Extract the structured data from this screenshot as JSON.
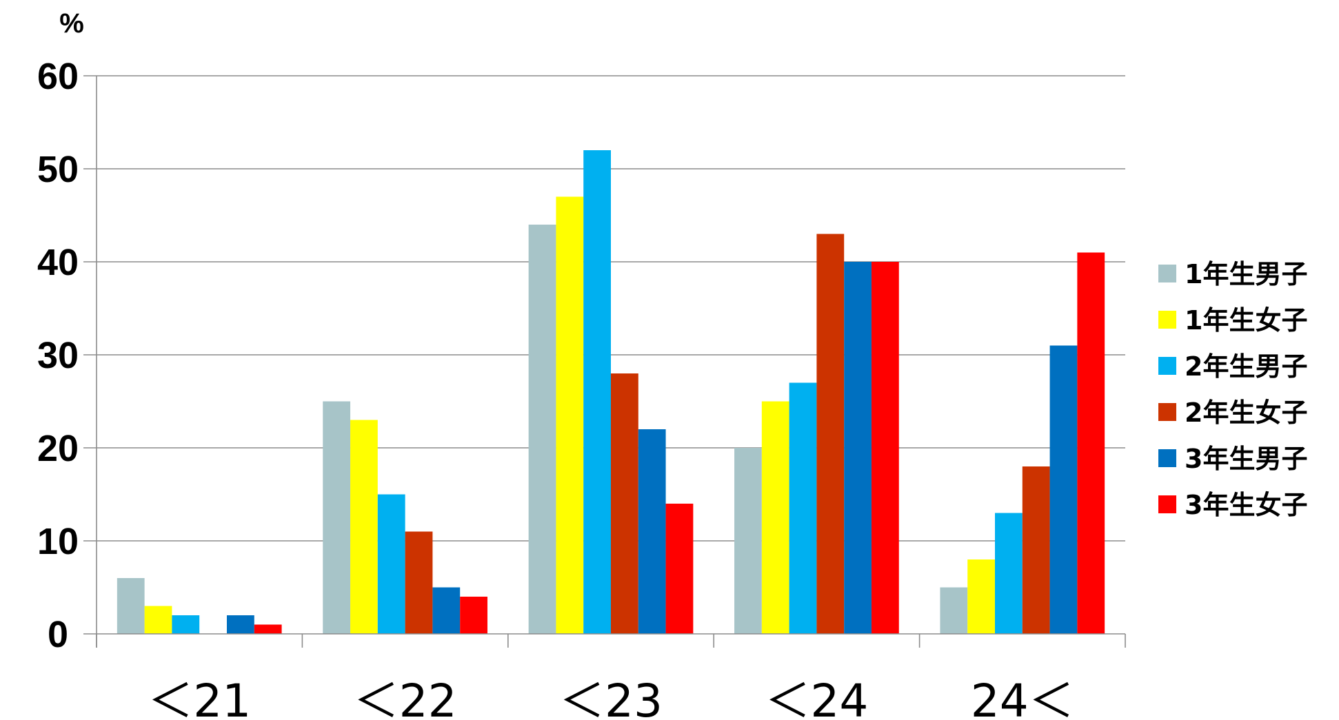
{
  "chart_data": {
    "type": "bar",
    "ylabel": "%",
    "ylim": [
      0,
      60
    ],
    "yticks": [
      "0",
      "10",
      "20",
      "30",
      "40",
      "50",
      "60"
    ],
    "categories": [
      "＜21",
      "＜22",
      "＜23",
      "＜24",
      "24＜"
    ],
    "grid": true,
    "legend_position": "right",
    "series": [
      {
        "name": "1年生男子",
        "color": "#A7C4C8",
        "values": [
          6,
          25,
          44,
          20,
          5
        ]
      },
      {
        "name": "1年生女子",
        "color": "#FFFF00",
        "values": [
          3,
          23,
          47,
          25,
          8
        ]
      },
      {
        "name": "2年生男子",
        "color": "#00B0F0",
        "values": [
          2,
          15,
          52,
          27,
          13
        ]
      },
      {
        "name": "2年生女子",
        "color": "#CC3300",
        "values": [
          0,
          11,
          28,
          43,
          18
        ]
      },
      {
        "name": "3年生男子",
        "color": "#0070C0",
        "values": [
          2,
          5,
          22,
          40,
          31
        ]
      },
      {
        "name": "3年生女子",
        "color": "#FF0000",
        "values": [
          1,
          4,
          14,
          40,
          41
        ]
      }
    ]
  }
}
